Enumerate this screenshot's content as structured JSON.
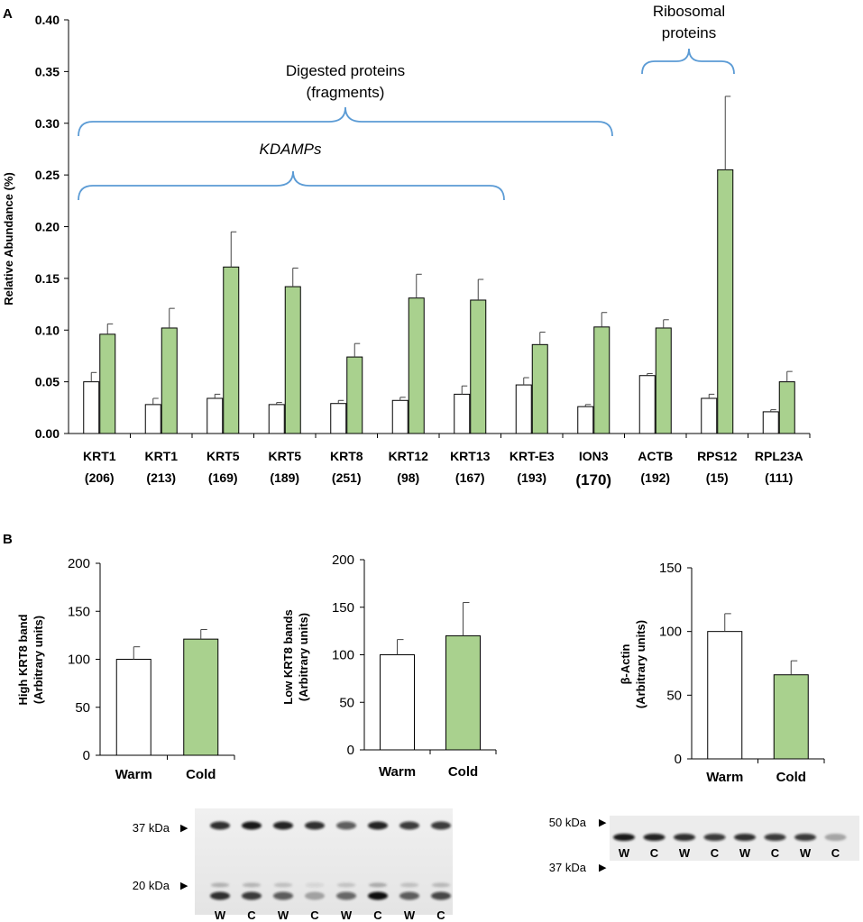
{
  "colors": {
    "warm": "#ffffff",
    "cold": "#a9d18e",
    "bracket": "#5b9bd5",
    "axis": "#000000"
  },
  "panel_a": {
    "letter": "A",
    "chart_data": {
      "type": "bar",
      "ylabel": "Relative Abundance (%)",
      "ylim": [
        0,
        0.4
      ],
      "yticks": [
        "0.00",
        "0.05",
        "0.10",
        "0.15",
        "0.20",
        "0.25",
        "0.30",
        "0.35",
        "0.40"
      ],
      "categories": [
        {
          "name": "KRT1",
          "sub": "(206)"
        },
        {
          "name": "KRT1",
          "sub": "(213)"
        },
        {
          "name": "KRT5",
          "sub": "(169)"
        },
        {
          "name": "KRT5",
          "sub": "(189)"
        },
        {
          "name": "KRT8",
          "sub": "(251)"
        },
        {
          "name": "KRT12",
          "sub": "(98)"
        },
        {
          "name": "KRT13",
          "sub": "(167)"
        },
        {
          "name": "KRT-E3",
          "sub": "(193)"
        },
        {
          "name": "ION3",
          "sub": "(170)"
        },
        {
          "name": "ACTB",
          "sub": "(192)"
        },
        {
          "name": "RPS12",
          "sub": "(15)"
        },
        {
          "name": "RPL23A",
          "sub": "(111)"
        }
      ],
      "series": [
        {
          "name": "Warm",
          "values": [
            0.05,
            0.028,
            0.034,
            0.028,
            0.029,
            0.032,
            0.038,
            0.047,
            0.026,
            0.056,
            0.034,
            0.021
          ],
          "errors": [
            0.009,
            0.006,
            0.004,
            0.002,
            0.003,
            0.003,
            0.008,
            0.007,
            0.002,
            0.002,
            0.004,
            0.002
          ]
        },
        {
          "name": "Cold",
          "values": [
            0.096,
            0.102,
            0.161,
            0.142,
            0.074,
            0.131,
            0.129,
            0.086,
            0.103,
            0.102,
            0.255,
            0.05
          ],
          "errors": [
            0.01,
            0.019,
            0.034,
            0.018,
            0.013,
            0.023,
            0.02,
            0.012,
            0.014,
            0.008,
            0.071,
            0.01
          ]
        }
      ],
      "annotations": {
        "digested": {
          "line1": "Digested proteins",
          "line2": "(fragments)"
        },
        "kdamps": "KDAMPs",
        "ribosomal": {
          "line1": "Ribosomal",
          "line2": "proteins"
        }
      }
    }
  },
  "panel_b": {
    "letter": "B",
    "charts": [
      {
        "type": "bar",
        "ylabel1": "High KRT8 band",
        "ylabel2": "(Arbitrary units)",
        "yticks": [
          "0",
          "50",
          "100",
          "150",
          "200"
        ],
        "ylim": [
          0,
          200
        ],
        "categories": [
          "Warm",
          "Cold"
        ],
        "values": [
          100,
          121
        ],
        "errors": [
          13,
          10
        ]
      },
      {
        "type": "bar",
        "ylabel1": "Low KRT8 bands",
        "ylabel2": "(Arbitrary units)",
        "yticks": [
          "0",
          "50",
          "100",
          "150",
          "200"
        ],
        "ylim": [
          0,
          200
        ],
        "categories": [
          "Warm",
          "Cold"
        ],
        "values": [
          100,
          120
        ],
        "errors": [
          16,
          35
        ]
      },
      {
        "type": "bar",
        "ylabel1": "β-Actin",
        "ylabel2": "(Arbitrary units)",
        "yticks": [
          "0",
          "50",
          "100",
          "150"
        ],
        "ylim": [
          0,
          150
        ],
        "categories": [
          "Warm",
          "Cold"
        ],
        "values": [
          100,
          66
        ],
        "errors": [
          14,
          11
        ]
      }
    ],
    "blot_left": {
      "marker_top": "37 kDa",
      "marker_bottom": "20 kDa",
      "lanes": [
        "W",
        "C",
        "W",
        "C",
        "W",
        "C",
        "W",
        "C"
      ],
      "top_band_intensity": [
        0.85,
        0.95,
        0.9,
        0.85,
        0.65,
        0.9,
        0.8,
        0.8
      ],
      "bottom_band_intensity": [
        0.85,
        0.8,
        0.65,
        0.3,
        0.6,
        1.0,
        0.65,
        0.75
      ]
    },
    "blot_right": {
      "marker_top": "50 kDa",
      "marker_bottom": "37 kDa",
      "lanes": [
        "W",
        "C",
        "W",
        "C",
        "W",
        "C",
        "W",
        "C"
      ],
      "band_intensity": [
        0.95,
        0.9,
        0.85,
        0.8,
        0.85,
        0.8,
        0.8,
        0.3
      ]
    }
  }
}
